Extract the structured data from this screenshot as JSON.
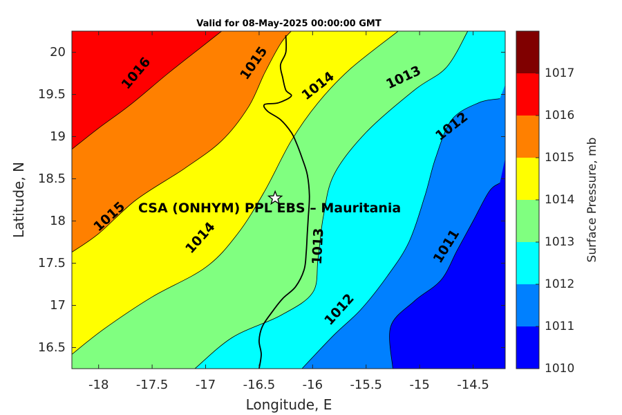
{
  "chart_data": {
    "type": "contour",
    "title": "Valid for 08-May-2025 00:00:00 GMT",
    "xlabel": "Longitude, E",
    "ylabel": "Latitude, N",
    "xlim": [
      -18.25,
      -14.2
    ],
    "ylim": [
      16.25,
      20.25
    ],
    "x_ticks": [
      "-18",
      "-17.5",
      "-17",
      "-16.5",
      "-16",
      "-15.5",
      "-15",
      "-14.5"
    ],
    "x_tick_values": [
      -18,
      -17.5,
      -17,
      -16.5,
      -16,
      -15.5,
      -15,
      -14.5
    ],
    "y_ticks": [
      "16.5",
      "17",
      "17.5",
      "18",
      "18.5",
      "19",
      "19.5",
      "20"
    ],
    "y_tick_values": [
      16.5,
      17,
      17.5,
      18,
      18.5,
      19,
      19.5,
      20
    ],
    "colorbar": {
      "title": "Surface Pressure, mb",
      "levels": [
        1010,
        1011,
        1012,
        1013,
        1014,
        1015,
        1016,
        1017
      ],
      "level_labels": [
        "1010",
        "1011",
        "1012",
        "1013",
        "1014",
        "1015",
        "1016",
        "1017"
      ],
      "colors": [
        "#0000ff",
        "#0080ff",
        "#00ffff",
        "#80ff80",
        "#ffff00",
        "#ff8000",
        "#ff0000",
        "#800000"
      ]
    },
    "contours": [
      {
        "level": 1016,
        "points": [
          [
            -18.25,
            18.85
          ],
          [
            -18.0,
            19.1
          ],
          [
            -17.7,
            19.38
          ],
          [
            -17.35,
            19.75
          ],
          [
            -17.0,
            20.1
          ],
          [
            -16.85,
            20.25
          ]
        ]
      },
      {
        "level": 1015,
        "points": [
          [
            -18.25,
            17.63
          ],
          [
            -18.0,
            17.85
          ],
          [
            -17.65,
            18.25
          ],
          [
            -17.2,
            18.62
          ],
          [
            -16.85,
            18.95
          ],
          [
            -16.6,
            19.35
          ],
          [
            -16.45,
            19.75
          ],
          [
            -16.3,
            20.1
          ],
          [
            -16.2,
            20.25
          ]
        ]
      },
      {
        "level": 1014,
        "points": [
          [
            -18.25,
            16.42
          ],
          [
            -17.95,
            16.72
          ],
          [
            -17.5,
            17.1
          ],
          [
            -17.0,
            17.45
          ],
          [
            -16.7,
            17.85
          ],
          [
            -16.45,
            18.35
          ],
          [
            -16.2,
            18.95
          ],
          [
            -15.95,
            19.4
          ],
          [
            -15.65,
            19.8
          ],
          [
            -15.2,
            20.25
          ]
        ]
      },
      {
        "level": 1013,
        "points": [
          [
            -17.1,
            16.25
          ],
          [
            -16.75,
            16.62
          ],
          [
            -16.3,
            16.88
          ],
          [
            -16.0,
            17.15
          ],
          [
            -15.95,
            17.55
          ],
          [
            -15.9,
            18.05
          ],
          [
            -15.8,
            18.55
          ],
          [
            -15.5,
            19.05
          ],
          [
            -15.05,
            19.55
          ],
          [
            -14.75,
            19.82
          ],
          [
            -14.55,
            20.25
          ]
        ]
      },
      {
        "level": 1012,
        "points": [
          [
            -16.1,
            16.25
          ],
          [
            -15.8,
            16.65
          ],
          [
            -15.55,
            16.95
          ],
          [
            -15.3,
            17.35
          ],
          [
            -15.1,
            17.75
          ],
          [
            -14.95,
            18.3
          ],
          [
            -14.85,
            18.75
          ],
          [
            -14.7,
            19.2
          ],
          [
            -14.45,
            19.4
          ],
          [
            -14.25,
            19.45
          ]
        ]
      },
      {
        "level": 1011,
        "points": [
          [
            -15.25,
            16.25
          ],
          [
            -15.27,
            16.75
          ],
          [
            -15.05,
            17.05
          ],
          [
            -14.8,
            17.3
          ],
          [
            -14.65,
            17.65
          ],
          [
            -14.5,
            18.0
          ],
          [
            -14.35,
            18.35
          ],
          [
            -14.25,
            18.45
          ]
        ]
      }
    ],
    "contour_labels": [
      {
        "text": "1016",
        "x": -17.65,
        "y": 19.75,
        "angle": -50
      },
      {
        "text": "1015",
        "x": -16.55,
        "y": 19.87,
        "angle": -55
      },
      {
        "text": "1015",
        "x": -17.9,
        "y": 18.05,
        "angle": -42
      },
      {
        "text": "1014",
        "x": -15.95,
        "y": 19.6,
        "angle": -38
      },
      {
        "text": "1014",
        "x": -17.05,
        "y": 17.8,
        "angle": -48
      },
      {
        "text": "1013",
        "x": -15.15,
        "y": 19.7,
        "angle": -25
      },
      {
        "text": "1013",
        "x": -15.95,
        "y": 17.7,
        "angle": -87
      },
      {
        "text": "1012",
        "x": -14.7,
        "y": 19.12,
        "angle": -38
      },
      {
        "text": "1012",
        "x": -15.75,
        "y": 16.95,
        "angle": -48
      },
      {
        "text": "1011",
        "x": -14.75,
        "y": 17.7,
        "angle": -58
      }
    ],
    "coastline": [
      [
        -16.5,
        16.25
      ],
      [
        -16.48,
        16.42
      ],
      [
        -16.5,
        16.58
      ],
      [
        -16.47,
        16.75
      ],
      [
        -16.38,
        16.92
      ],
      [
        -16.28,
        17.08
      ],
      [
        -16.16,
        17.22
      ],
      [
        -16.08,
        17.42
      ],
      [
        -16.06,
        17.62
      ],
      [
        -16.05,
        17.85
      ],
      [
        -16.04,
        18.05
      ],
      [
        -16.03,
        18.3
      ],
      [
        -16.05,
        18.55
      ],
      [
        -16.1,
        18.75
      ],
      [
        -16.15,
        18.92
      ],
      [
        -16.2,
        19.05
      ],
      [
        -16.3,
        19.2
      ],
      [
        -16.42,
        19.3
      ],
      [
        -16.45,
        19.38
      ],
      [
        -16.32,
        19.4
      ],
      [
        -16.2,
        19.48
      ],
      [
        -16.25,
        19.55
      ],
      [
        -16.28,
        19.7
      ],
      [
        -16.3,
        19.85
      ],
      [
        -16.25,
        20.0
      ],
      [
        -16.25,
        20.2
      ]
    ],
    "station": {
      "name": "CSA (ONHYM) PPL EBS  – Mauritania",
      "lon": -16.35,
      "lat": 18.27
    }
  }
}
